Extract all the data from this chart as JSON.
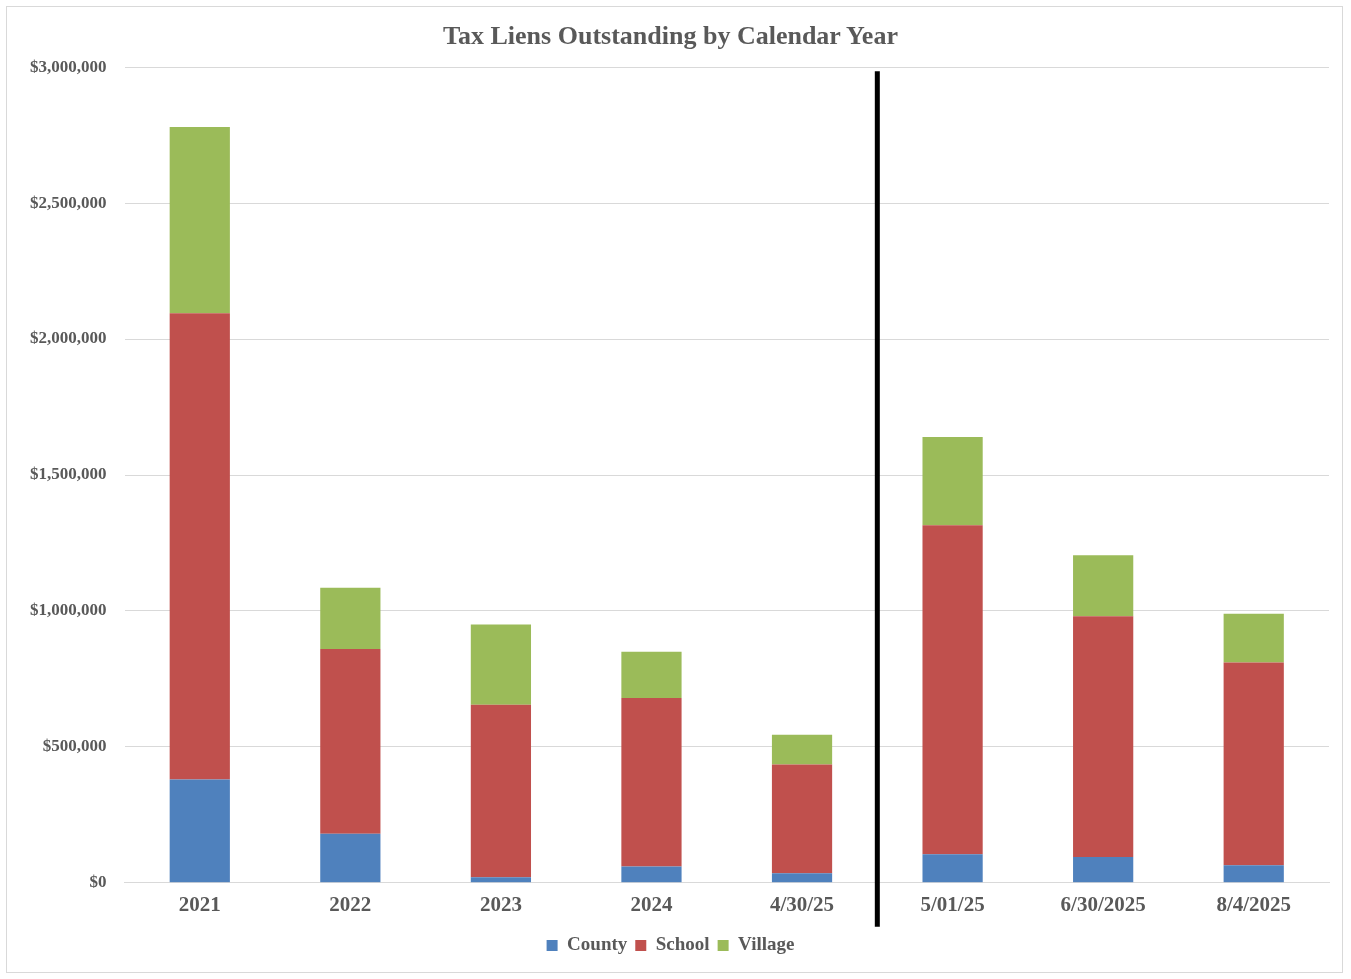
{
  "chart_data": {
    "type": "bar",
    "title": "Tax Liens Outstanding by Calendar Year",
    "stacked": true,
    "categories": [
      "2021",
      "2022",
      "2023",
      "2024",
      "4/30/25",
      "5/01/25",
      "6/30/2025",
      "8/4/2025"
    ],
    "series": [
      {
        "name": "County",
        "color": "#4f81bd",
        "values": [
          380000,
          180000,
          20000,
          60000,
          35000,
          105000,
          95000,
          65000
        ]
      },
      {
        "name": "School",
        "color": "#c0504d",
        "values": [
          1715000,
          680000,
          635000,
          620000,
          400000,
          1210000,
          885000,
          745000
        ]
      },
      {
        "name": "Village",
        "color": "#9bbb59",
        "values": [
          685000,
          225000,
          295000,
          170000,
          110000,
          325000,
          225000,
          180000
        ]
      }
    ],
    "ylim": [
      0,
      3000000
    ],
    "yticks": [
      {
        "value": 0,
        "label": "$0"
      },
      {
        "value": 500000,
        "label": "$500,000"
      },
      {
        "value": 1000000,
        "label": "$1,000,000"
      },
      {
        "value": 1500000,
        "label": "$1,500,000"
      },
      {
        "value": 2000000,
        "label": "$2,000,000"
      },
      {
        "value": 2500000,
        "label": "$2,500,000"
      },
      {
        "value": 3000000,
        "label": "$3,000,000"
      }
    ],
    "ref_lines": [
      {
        "axis": "x",
        "value": "5/01/25",
        "color": "#000000"
      }
    ],
    "grid": "y",
    "legend": "bottom"
  }
}
